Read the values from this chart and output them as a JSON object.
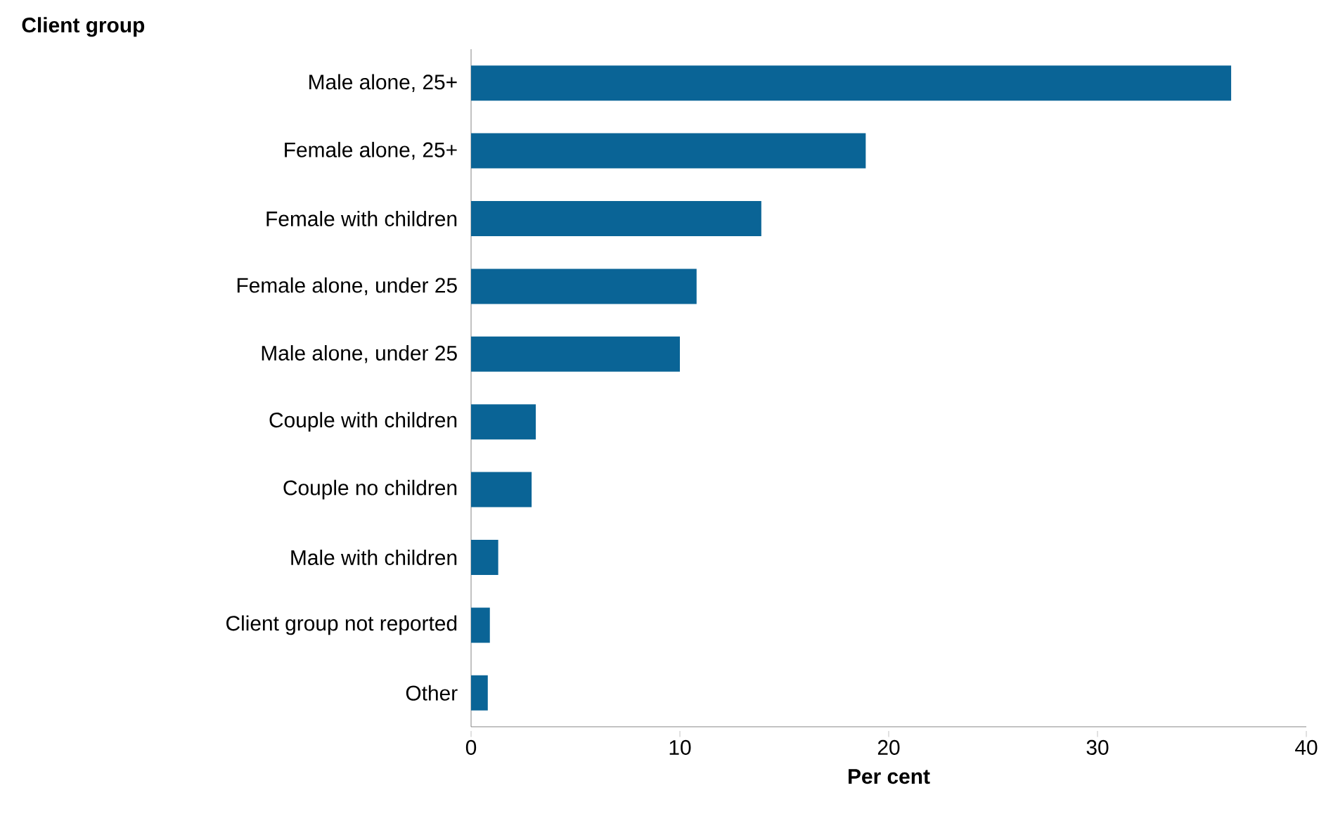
{
  "chart_data": {
    "type": "bar",
    "orientation": "horizontal",
    "title": "Client group",
    "xlabel": "Per cent",
    "categories": [
      "Male alone, 25+",
      "Female alone, 25+",
      "Female with children",
      "Female alone, under 25",
      "Male alone, under 25",
      "Couple with children",
      "Couple no children",
      "Male with children",
      "Client group not reported",
      "Other"
    ],
    "values": [
      36.4,
      18.9,
      13.9,
      10.8,
      10.0,
      3.1,
      2.9,
      1.3,
      0.9,
      0.8
    ],
    "color": "#0a6496",
    "xlim": [
      0,
      40
    ],
    "xticks": [
      0,
      10,
      20,
      30,
      40
    ],
    "grid": false
  }
}
